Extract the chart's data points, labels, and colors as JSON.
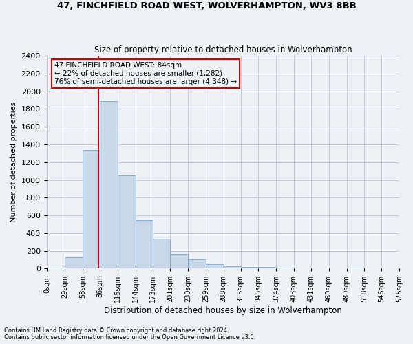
{
  "title1": "47, FINCHFIELD ROAD WEST, WOLVERHAMPTON, WV3 8BB",
  "title2": "Size of property relative to detached houses in Wolverhampton",
  "xlabel": "Distribution of detached houses by size in Wolverhampton",
  "ylabel": "Number of detached properties",
  "footnote1": "Contains HM Land Registry data © Crown copyright and database right 2024.",
  "footnote2": "Contains public sector information licensed under the Open Government Licence v3.0.",
  "bar_color": "#c8d8e8",
  "bar_edge_color": "#7aa8cc",
  "grid_color": "#c0cdd8",
  "annotation_box_color": "#cc0000",
  "property_line_color": "#cc0000",
  "background_color": "#eef2f6",
  "bins": [
    0,
    29,
    58,
    86,
    115,
    144,
    173,
    201,
    230,
    259,
    288,
    316,
    345,
    374,
    403,
    431,
    460,
    489,
    518,
    546,
    575
  ],
  "counts": [
    10,
    125,
    1340,
    1890,
    1050,
    545,
    340,
    170,
    105,
    50,
    30,
    22,
    20,
    10,
    2,
    0,
    0,
    10,
    0,
    5
  ],
  "property_size": 84,
  "annotation_text": "47 FINCHFIELD ROAD WEST: 84sqm\n← 22% of detached houses are smaller (1,282)\n76% of semi-detached houses are larger (4,348) →",
  "ylim": [
    0,
    2400
  ],
  "yticks": [
    0,
    200,
    400,
    600,
    800,
    1000,
    1200,
    1400,
    1600,
    1800,
    2000,
    2200,
    2400
  ]
}
